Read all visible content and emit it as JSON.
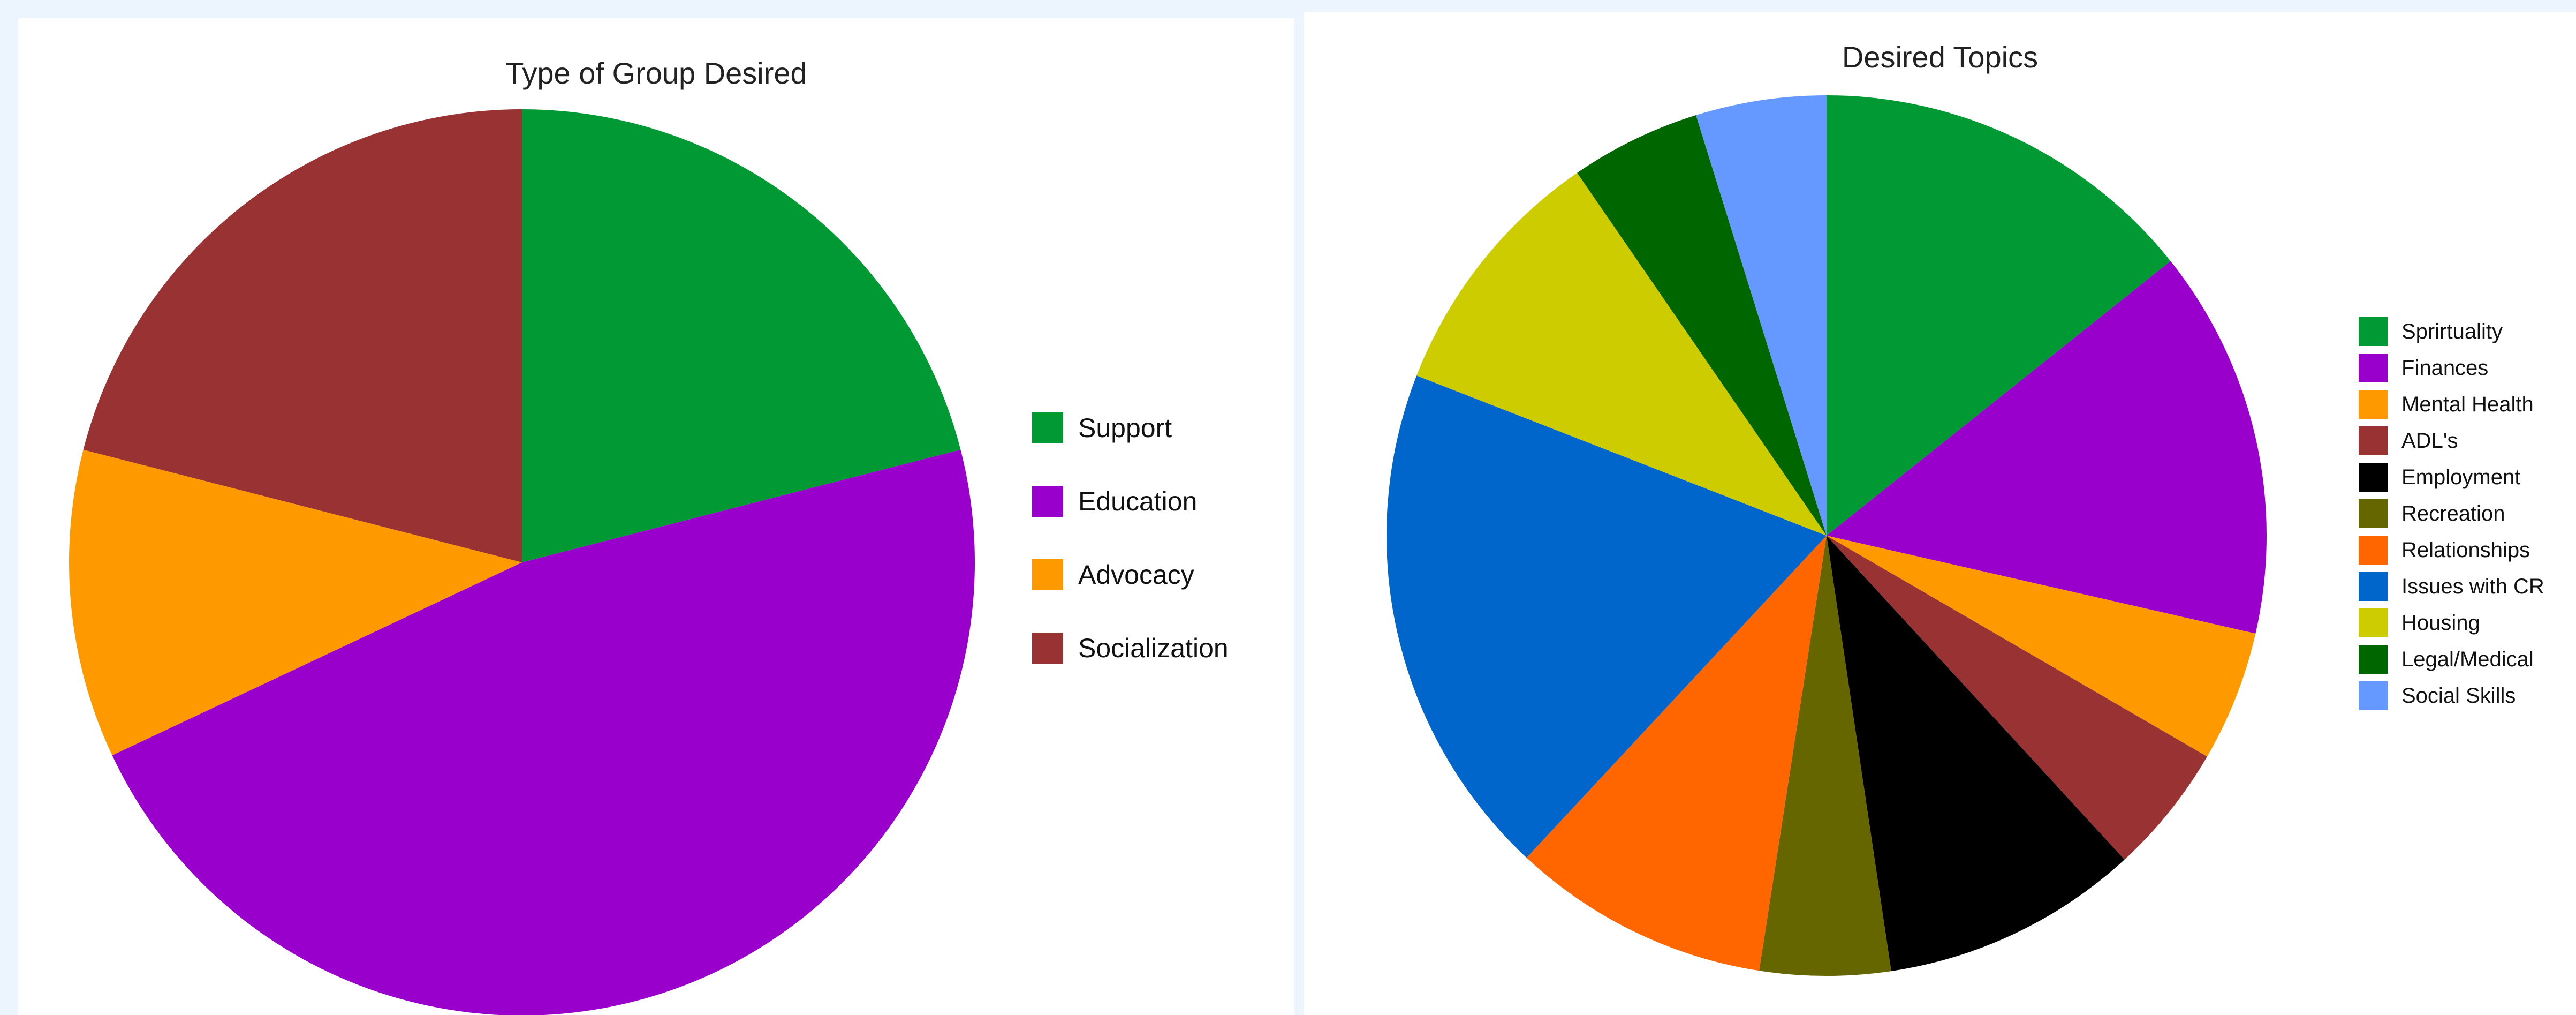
{
  "chart_data": [
    {
      "type": "pie",
      "title": "Type of Group Desired",
      "categories": [
        "Support",
        "Education",
        "Advocacy",
        "Socialization"
      ],
      "values": [
        21,
        47,
        11,
        21
      ],
      "colors": [
        "#009933",
        "#9900cc",
        "#ff9900",
        "#993333"
      ],
      "start_angle_deg": 0,
      "direction": "clockwise",
      "legend_position": "right"
    },
    {
      "type": "pie",
      "title": "Desired Topics",
      "categories": [
        "Sprirtuality",
        "Finances",
        "Mental Health",
        "ADL's",
        "Employment",
        "Recreation",
        "Relationships",
        "Issues with CR",
        "Housing",
        "Legal/Medical",
        "Social Skills"
      ],
      "values": [
        14.3,
        14.3,
        4.8,
        4.8,
        9.5,
        4.8,
        9.5,
        19,
        9.5,
        4.8,
        4.8
      ],
      "colors": [
        "#009933",
        "#9900cc",
        "#ff9900",
        "#993333",
        "#000000",
        "#666600",
        "#ff6600",
        "#0066cc",
        "#cccc00",
        "#006600",
        "#6699ff"
      ],
      "start_angle_deg": 0,
      "direction": "clockwise",
      "legend_position": "right"
    }
  ]
}
